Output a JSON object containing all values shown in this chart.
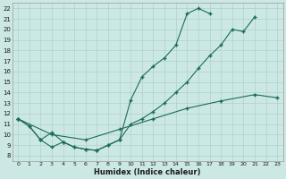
{
  "xlabel": "Humidex (Indice chaleur)",
  "bg_color": "#cce8e4",
  "line_color": "#1a6b5a",
  "grid_color": "#b0d0cc",
  "xlim": [
    -0.5,
    23.5
  ],
  "ylim": [
    7.5,
    22.5
  ],
  "xticks": [
    0,
    1,
    2,
    3,
    4,
    5,
    6,
    7,
    8,
    9,
    10,
    11,
    12,
    13,
    14,
    15,
    16,
    17,
    18,
    19,
    20,
    21,
    22,
    23
  ],
  "yticks": [
    8,
    9,
    10,
    11,
    12,
    13,
    14,
    15,
    16,
    17,
    18,
    19,
    20,
    21,
    22
  ],
  "line1_x": [
    0,
    1,
    2,
    3,
    4,
    5,
    6,
    7,
    8,
    9,
    10,
    11,
    12,
    13,
    14,
    15,
    16,
    17
  ],
  "line1_y": [
    11.5,
    10.8,
    9.5,
    10.2,
    9.3,
    8.8,
    8.6,
    8.5,
    9.0,
    9.5,
    13.3,
    15.5,
    16.5,
    17.3,
    18.5,
    21.5,
    22.0,
    21.5
  ],
  "line2_x": [
    0,
    1,
    2,
    3,
    4,
    5,
    6,
    7,
    8,
    9,
    10,
    11,
    12,
    13,
    14,
    15,
    16,
    17,
    18,
    19,
    20,
    21
  ],
  "line2_y": [
    11.5,
    10.8,
    9.5,
    8.8,
    9.3,
    8.8,
    8.6,
    8.5,
    9.0,
    9.5,
    11.0,
    11.5,
    12.2,
    13.0,
    14.0,
    15.0,
    16.3,
    17.5,
    18.5,
    20.0,
    19.8,
    21.2
  ],
  "line3_x": [
    0,
    3,
    6,
    9,
    12,
    15,
    18,
    21,
    23
  ],
  "line3_y": [
    11.5,
    10.0,
    9.5,
    10.5,
    11.5,
    12.5,
    13.2,
    13.8,
    13.5
  ]
}
